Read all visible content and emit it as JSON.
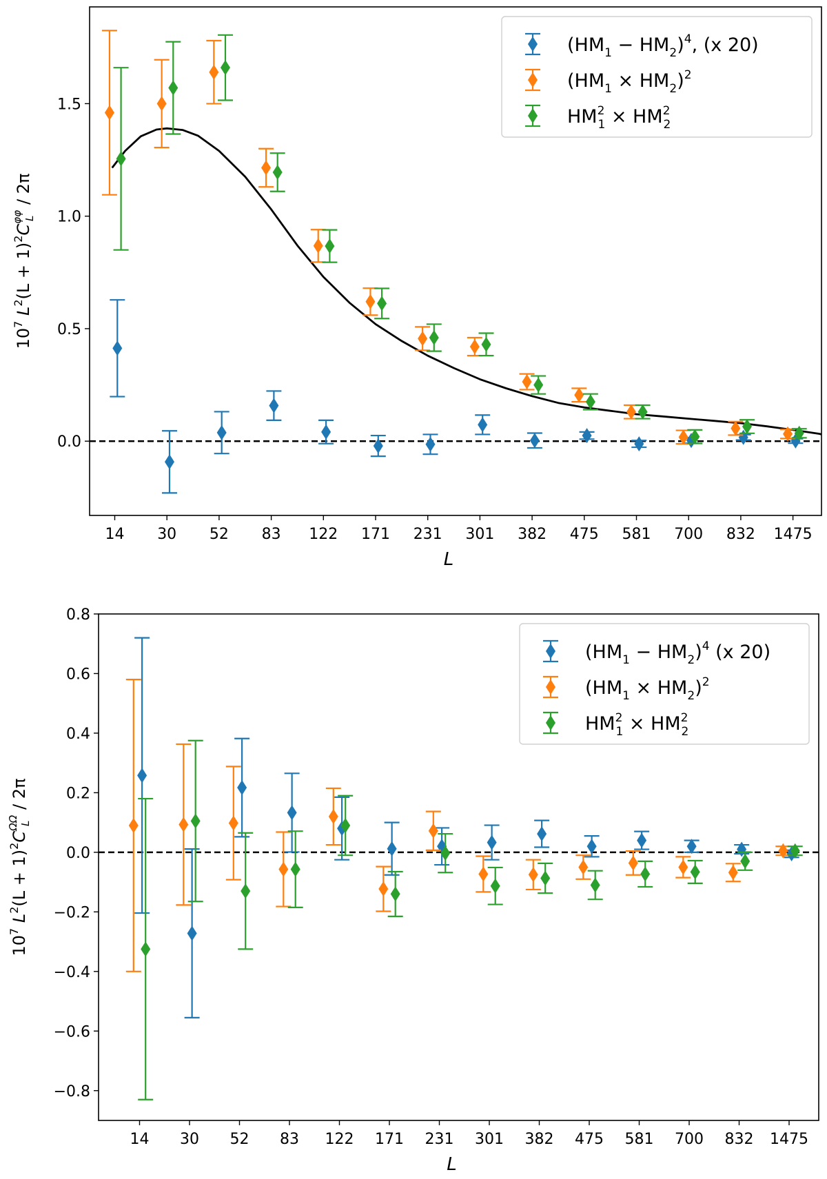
{
  "colors": {
    "blue": "#1f77b4",
    "orange": "#ff7f0e",
    "green": "#2ca02c",
    "black": "#000000"
  },
  "chart_data": [
    {
      "type": "scatter",
      "title": "",
      "xlabel": "L",
      "ylabel": "10^7 L^2(L+1)^2 C_L^{φφ} / 2π",
      "ylabel_parts": {
        "prefix": "10",
        "exp7": "7",
        "mid": "L",
        "e2": "2",
        "paren": "(L + 1)",
        "e2b": "2",
        "C": "C",
        "sub": "L",
        "sup": "φφ",
        "tail": " / 2π"
      },
      "categories": [
        "14",
        "30",
        "52",
        "83",
        "122",
        "171",
        "231",
        "301",
        "382",
        "475",
        "581",
        "700",
        "832",
        "1475"
      ],
      "ylim": [
        -0.33,
        1.93
      ],
      "yticks": [
        "0.0",
        "0.5",
        "1.0",
        "1.5"
      ],
      "ytick_values": [
        0.0,
        0.5,
        1.0,
        1.5
      ],
      "reference_line": 0.0,
      "legend_position": "top-right",
      "series": [
        {
          "name": "(HM₁ − HM₂)⁴, (x 20)",
          "color": "blue",
          "offset": 0.05,
          "values": [
            0.413,
            -0.092,
            0.038,
            0.158,
            0.041,
            -0.021,
            -0.014,
            0.073,
            0.003,
            0.025,
            -0.012,
            0.003,
            0.017,
            0.001
          ],
          "errors": [
            0.215,
            0.138,
            0.093,
            0.065,
            0.052,
            0.046,
            0.044,
            0.043,
            0.033,
            0.016,
            0.015,
            0.012,
            0.012,
            0.01
          ]
        },
        {
          "name": "(HM₁ × HM₂)²",
          "color": "orange",
          "offset": -0.1,
          "values": [
            1.46,
            1.5,
            1.64,
            1.215,
            0.868,
            0.62,
            0.456,
            0.42,
            0.264,
            0.205,
            0.13,
            0.018,
            0.057,
            0.032
          ],
          "errors": [
            0.365,
            0.195,
            0.14,
            0.085,
            0.072,
            0.06,
            0.052,
            0.04,
            0.035,
            0.03,
            0.03,
            0.03,
            0.03,
            0.02
          ]
        },
        {
          "name": "HM₁² × HM₂²",
          "color": "green",
          "offset": 0.12,
          "values": [
            1.255,
            1.57,
            1.66,
            1.195,
            0.867,
            0.612,
            0.46,
            0.43,
            0.25,
            0.175,
            0.13,
            0.02,
            0.065,
            0.035
          ],
          "errors": [
            0.405,
            0.205,
            0.145,
            0.085,
            0.072,
            0.067,
            0.06,
            0.05,
            0.04,
            0.035,
            0.03,
            0.03,
            0.03,
            0.02
          ]
        }
      ],
      "legend_labels": [
        {
          "base": "(HM",
          "s1": "1",
          "op": " − HM",
          "s2": "2",
          "close": ")",
          "sup": "4",
          "tail": ", (x 20)"
        },
        {
          "base": "(HM",
          "s1": "1",
          "op": " × HM",
          "s2": "2",
          "close": ")",
          "sup": "2",
          "tail": ""
        },
        {
          "base": "HM",
          "sup1": "2",
          "s1": "1",
          "op": " × HM",
          "sup2": "2",
          "s2": "2"
        }
      ],
      "theory_curve": {
        "color": "black",
        "x": [
          -0.05,
          0.2,
          0.5,
          0.8,
          1.0,
          1.3,
          1.6,
          2.0,
          2.5,
          3.0,
          3.5,
          4.0,
          4.5,
          5.0,
          5.5,
          6.0,
          6.5,
          7.0,
          7.5,
          8.0,
          8.5,
          9.0,
          9.5,
          10.0,
          10.5,
          11.0,
          11.5,
          12.0,
          12.5,
          13.0,
          13.5,
          13.55
        ],
        "y": [
          1.215,
          1.29,
          1.355,
          1.385,
          1.39,
          1.383,
          1.357,
          1.29,
          1.175,
          1.03,
          0.87,
          0.73,
          0.615,
          0.52,
          0.445,
          0.38,
          0.325,
          0.275,
          0.235,
          0.2,
          0.17,
          0.15,
          0.135,
          0.12,
          0.11,
          0.1,
          0.09,
          0.08,
          0.066,
          0.05,
          0.033,
          0.03
        ]
      }
    },
    {
      "type": "scatter",
      "title": "",
      "xlabel": "L",
      "ylabel": "10^7 L^2(L+1)^2 C_L^{ΩΩ} / 2π",
      "ylabel_parts": {
        "prefix": "10",
        "exp7": "7",
        "mid": "L",
        "e2": "2",
        "paren": "(L + 1)",
        "e2b": "2",
        "C": "C",
        "sub": "L",
        "sup": "ΩΩ",
        "tail": " / 2π"
      },
      "categories": [
        "14",
        "30",
        "52",
        "83",
        "122",
        "171",
        "231",
        "301",
        "382",
        "475",
        "581",
        "700",
        "832",
        "1475"
      ],
      "ylim": [
        -0.9,
        0.8
      ],
      "yticks": [
        "0.8",
        "0.6",
        "0.4",
        "0.2",
        "0.0",
        "−0.2",
        "−0.4",
        "−0.6",
        "−0.8"
      ],
      "ytick_values": [
        0.8,
        0.6,
        0.4,
        0.2,
        0.0,
        -0.2,
        -0.4,
        -0.6,
        -0.8
      ],
      "reference_line": 0.0,
      "legend_position": "top-right",
      "series": [
        {
          "name": "(HM₁ − HM₂)⁴ (x 20)",
          "color": "blue",
          "offset": 0.05,
          "values": [
            0.258,
            -0.272,
            0.217,
            0.133,
            0.08,
            0.012,
            0.02,
            0.033,
            0.062,
            0.02,
            0.04,
            0.02,
            0.01,
            -0.005
          ],
          "errors": [
            0.462,
            0.283,
            0.165,
            0.132,
            0.105,
            0.088,
            0.062,
            0.058,
            0.045,
            0.035,
            0.03,
            0.02,
            0.015,
            0.012
          ]
        },
        {
          "name": "(HM₁ × HM₂)²",
          "color": "orange",
          "offset": -0.12,
          "values": [
            0.09,
            0.093,
            0.098,
            -0.057,
            0.12,
            -0.123,
            0.072,
            -0.073,
            -0.075,
            -0.05,
            -0.036,
            -0.05,
            -0.068,
            0.005
          ],
          "errors": [
            0.49,
            0.27,
            0.19,
            0.125,
            0.095,
            0.075,
            0.065,
            0.06,
            0.05,
            0.04,
            0.04,
            0.035,
            0.03,
            0.015
          ]
        },
        {
          "name": "HM₁² × HM₂²",
          "color": "green",
          "offset": 0.12,
          "values": [
            -0.325,
            0.105,
            -0.13,
            -0.057,
            0.09,
            -0.14,
            -0.003,
            -0.113,
            -0.087,
            -0.11,
            -0.073,
            -0.066,
            -0.03,
            0.005
          ],
          "errors": [
            0.505,
            0.27,
            0.195,
            0.128,
            0.1,
            0.075,
            0.065,
            0.062,
            0.05,
            0.048,
            0.043,
            0.038,
            0.03,
            0.015
          ]
        }
      ],
      "legend_labels": [
        {
          "base": "(HM",
          "s1": "1",
          "op": " − HM",
          "s2": "2",
          "close": ")",
          "sup": "4",
          "tail": " (x 20)"
        },
        {
          "base": "(HM",
          "s1": "1",
          "op": " × HM",
          "s2": "2",
          "close": ")",
          "sup": "2",
          "tail": ""
        },
        {
          "base": "HM",
          "sup1": "2",
          "s1": "1",
          "op": " × HM",
          "sup2": "2",
          "s2": "2"
        }
      ]
    }
  ]
}
